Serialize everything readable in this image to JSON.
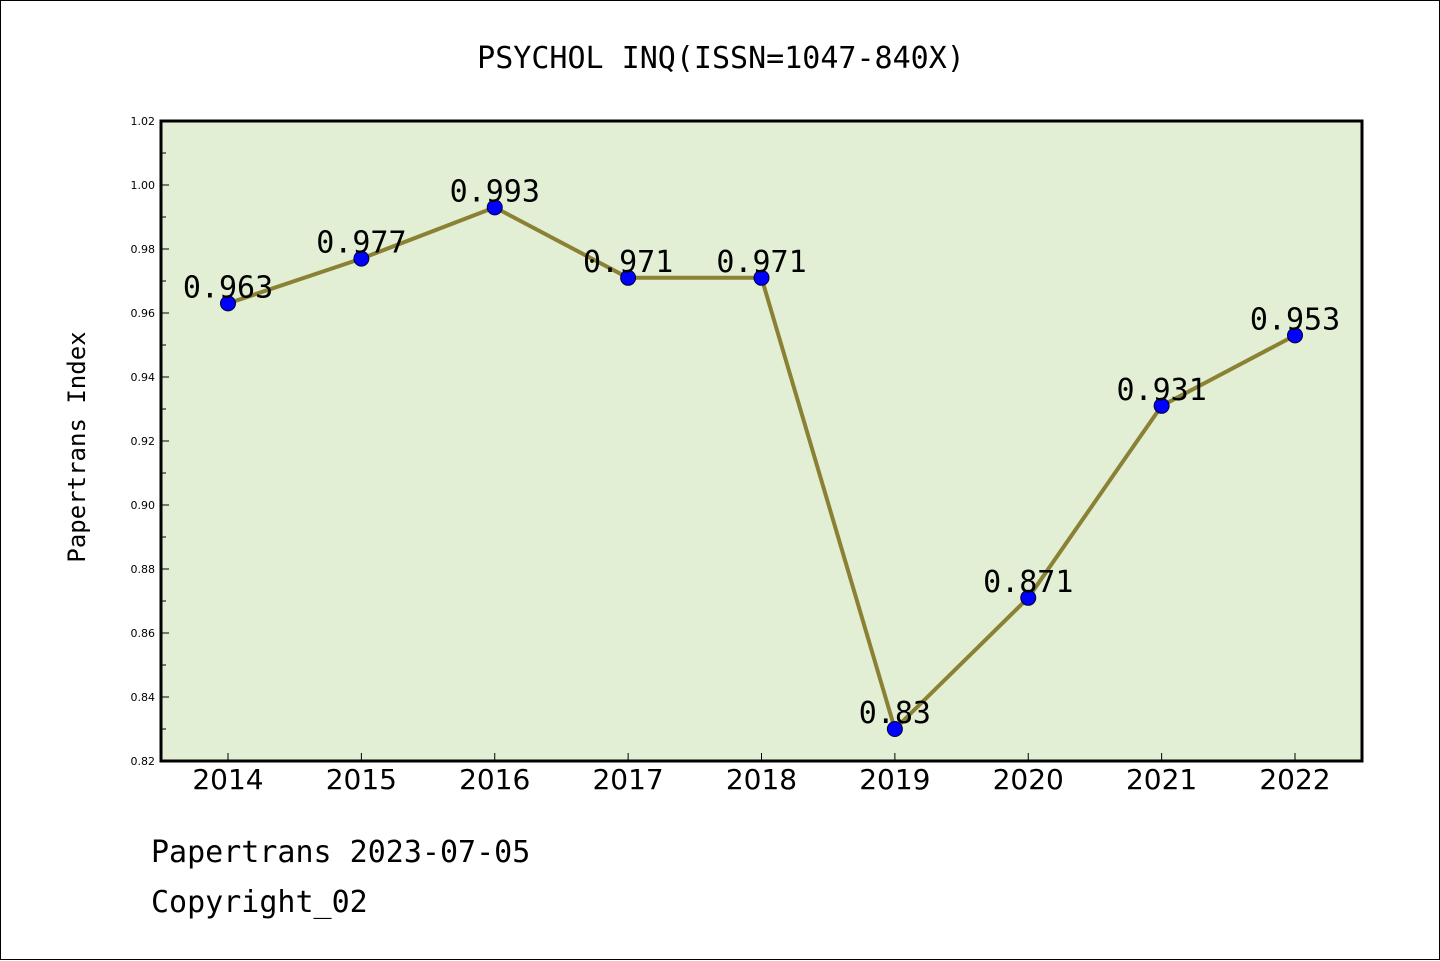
{
  "chart_data": {
    "type": "line",
    "title": "PSYCHOL INQ(ISSN=1047-840X)",
    "xlabel": "",
    "ylabel": "Papertrans Index",
    "categories": [
      "2014",
      "2015",
      "2016",
      "2017",
      "2018",
      "2019",
      "2020",
      "2021",
      "2022"
    ],
    "series": [
      {
        "values": [
          0.963,
          0.977,
          0.993,
          0.971,
          0.971,
          0.83,
          0.871,
          0.931,
          0.953
        ],
        "data_labels": [
          "0.963",
          "0.977",
          "0.993",
          "0.971",
          "0.971",
          "0.83",
          "0.871",
          "0.931",
          "0.953"
        ]
      }
    ],
    "ylim": [
      0.82,
      1.02
    ],
    "yticks": [
      "0.82",
      "0.84",
      "0.86",
      "0.88",
      "0.90",
      "0.92",
      "0.94",
      "0.96",
      "0.98",
      "1.00",
      "1.02"
    ],
    "grid": false,
    "legend": "none",
    "colors": {
      "plot_background": "#e2efd5",
      "line": "#8b8134",
      "marker": "#0000ff"
    }
  },
  "footer": {
    "date_line": "Papertrans 2023-07-05",
    "copyright_line": "Copyright_02"
  }
}
